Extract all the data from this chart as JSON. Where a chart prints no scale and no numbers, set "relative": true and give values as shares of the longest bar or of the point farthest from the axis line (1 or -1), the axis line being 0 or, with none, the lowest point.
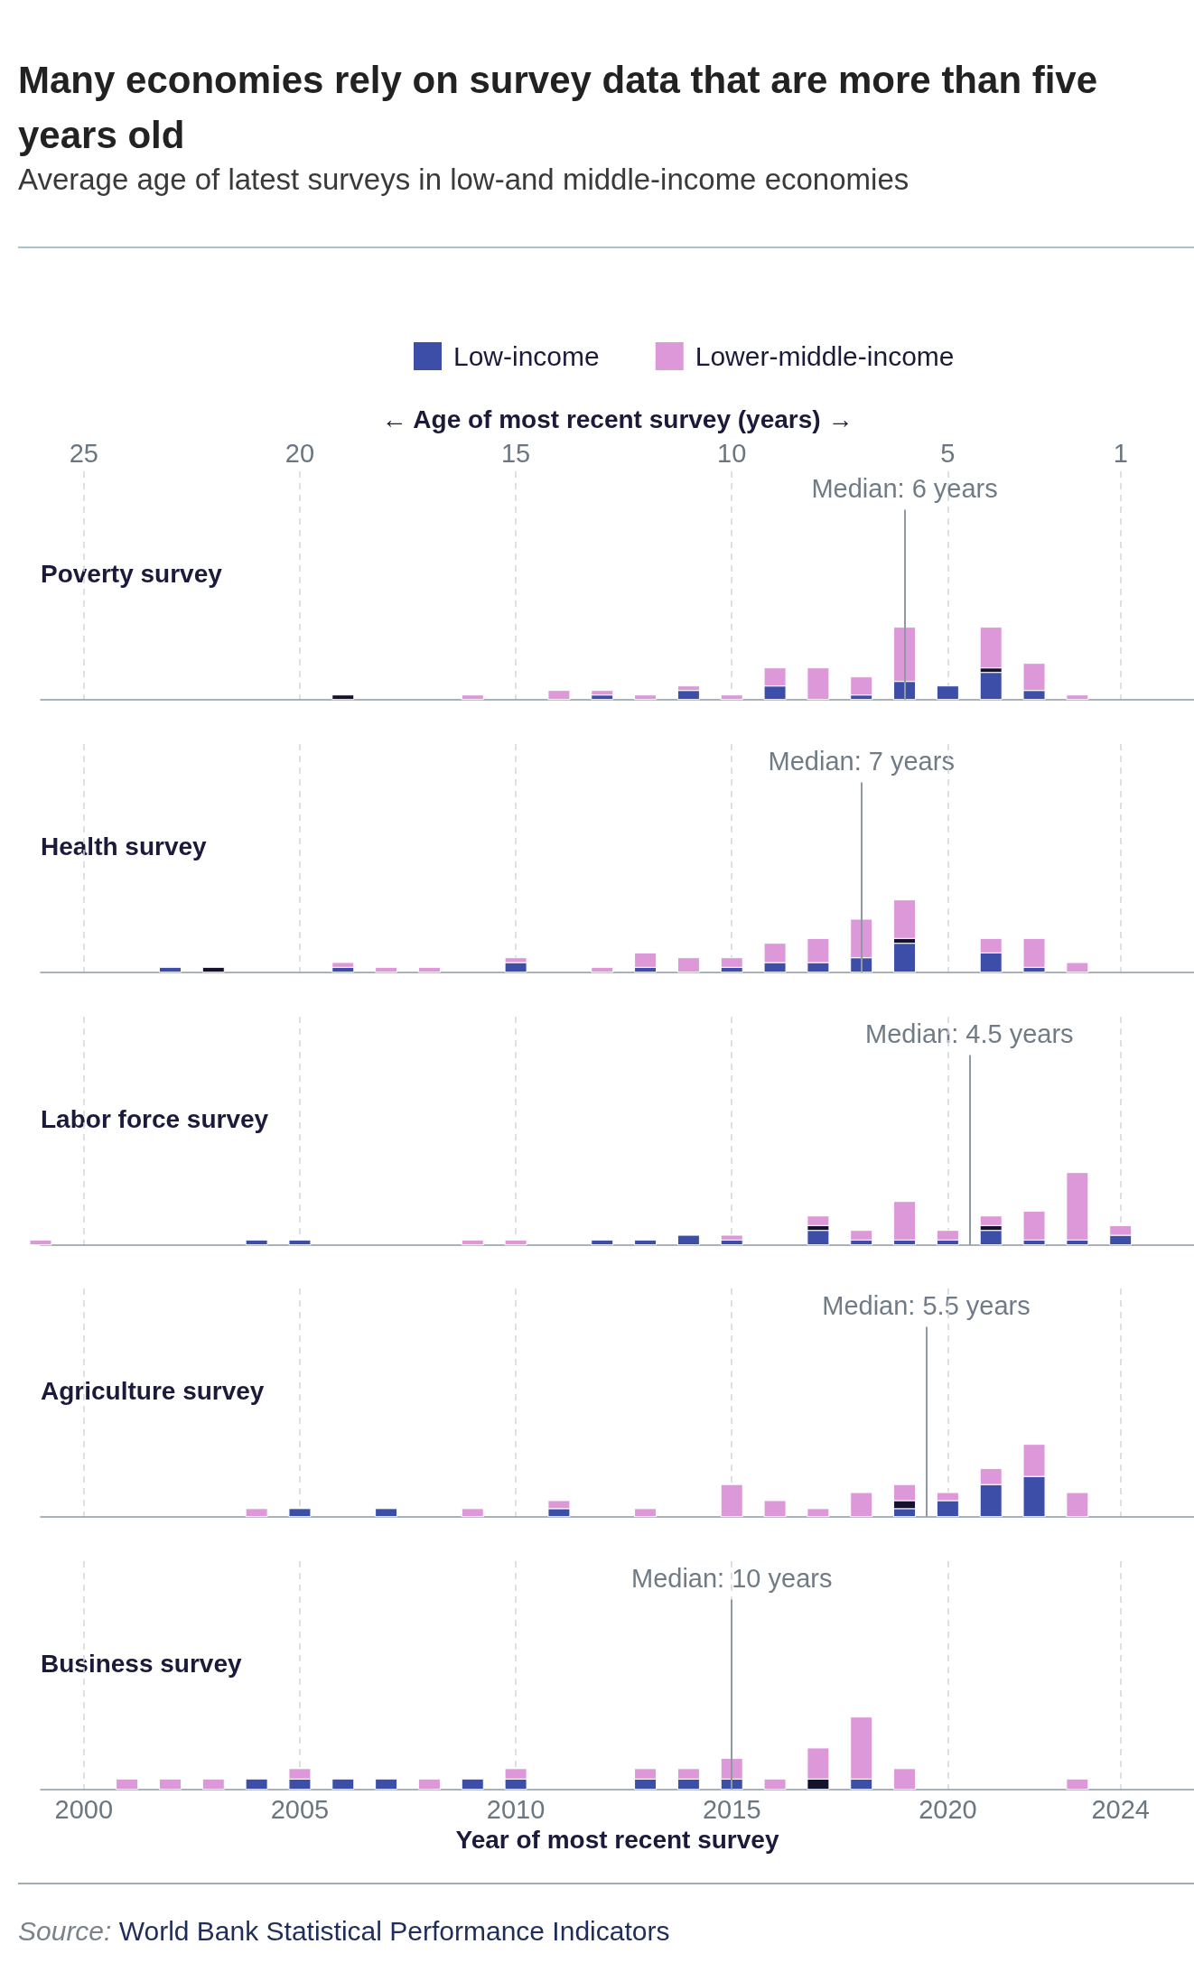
{
  "chart_data": [
    {
      "type": "bar",
      "title": "Many economies rely on survey data that are more than five years old",
      "subtitle": "Average age of latest surveys in low-and middle-income economies",
      "ylabel": "Poverty survey",
      "stacked": true,
      "relative": true,
      "legend": "top",
      "grid": "x",
      "x": [
        2006,
        2009,
        2011,
        2012,
        2013,
        2014,
        2015,
        2016,
        2017,
        2018,
        2019,
        2020,
        2021,
        2022,
        2023
      ],
      "series": [
        {
          "name": "Low-income",
          "color": "#3d4ea8",
          "values": [
            null,
            null,
            null,
            0.0625,
            null,
            0.125,
            null,
            0.1875,
            null,
            0.0625,
            0.25,
            0.1875,
            0.375,
            0.125,
            null
          ]
        },
        {
          "color": "#14122d",
          "values": [
            0.0625,
            null,
            null,
            null,
            null,
            null,
            null,
            null,
            null,
            null,
            null,
            null,
            0.0625,
            null,
            null
          ]
        },
        {
          "name": "Lower-middle-income",
          "color": "#dc98d9",
          "values": [
            null,
            0.0625,
            0.125,
            0.0625,
            0.0625,
            0.0625,
            0.0625,
            0.25,
            0.4375,
            0.25,
            0.75,
            null,
            0.5625,
            0.375,
            0.0625
          ]
        }
      ],
      "xlim": [
        1999,
        2025.7
      ],
      "x2lim": [
        26,
        -0.7
      ],
      "x2ticks": [
        25,
        20,
        15,
        10,
        5,
        1
      ],
      "x2label": "← Age of most recent survey (years) →",
      "ref_lines": [
        {
          "axis": "x2",
          "value": 6,
          "label": "Median: 6 years",
          "color": "#8e99a3"
        }
      ]
    },
    {
      "type": "bar",
      "ylabel": "Health survey",
      "stacked": true,
      "relative": true,
      "grid": "x",
      "tick_labels": false,
      "x": [
        2002,
        2003,
        2006,
        2007,
        2008,
        2010,
        2012,
        2013,
        2014,
        2015,
        2016,
        2017,
        2018,
        2019,
        2021,
        2022,
        2023
      ],
      "series": [
        {
          "color": "#3d4ea8",
          "values": [
            0.067,
            null,
            0.067,
            null,
            null,
            0.133,
            null,
            0.067,
            null,
            0.067,
            0.133,
            0.133,
            0.2,
            0.4,
            0.267,
            0.067,
            null
          ]
        },
        {
          "color": "#14122d",
          "values": [
            null,
            0.067,
            null,
            null,
            null,
            null,
            null,
            null,
            null,
            null,
            null,
            null,
            null,
            0.067,
            null,
            null,
            null
          ]
        },
        {
          "color": "#dc98d9",
          "values": [
            null,
            null,
            0.067,
            0.067,
            0.067,
            0.067,
            0.067,
            0.2,
            0.2,
            0.133,
            0.267,
            0.333,
            0.533,
            0.533,
            0.2,
            0.4,
            0.133
          ]
        }
      ],
      "xlim": [
        1999,
        2025.7
      ],
      "xticks": [
        2000,
        2005,
        2010,
        2015,
        2020,
        2024
      ],
      "ref_lines": [
        {
          "axis": "x",
          "value": 2018,
          "color": "#8e99a3"
        }
      ],
      "annotations": [
        "Median: 7 years"
      ]
    },
    {
      "type": "bar",
      "ylabel": "Labor force survey",
      "stacked": true,
      "relative": true,
      "grid": "x",
      "tick_labels": false,
      "x": [
        1999,
        2004,
        2005,
        2009,
        2010,
        2012,
        2013,
        2014,
        2015,
        2017,
        2018,
        2019,
        2020,
        2021,
        2022,
        2023,
        2024
      ],
      "series": [
        {
          "color": "#3d4ea8",
          "values": [
            null,
            0.067,
            0.067,
            null,
            null,
            0.067,
            0.067,
            0.133,
            0.067,
            0.2,
            0.067,
            0.067,
            0.067,
            0.2,
            0.067,
            0.067,
            0.133
          ]
        },
        {
          "color": "#14122d",
          "values": [
            null,
            null,
            null,
            null,
            null,
            null,
            null,
            null,
            null,
            0.067,
            null,
            null,
            null,
            0.067,
            null,
            null,
            null
          ]
        },
        {
          "color": "#dc98d9",
          "values": [
            0.067,
            null,
            null,
            0.067,
            0.067,
            null,
            null,
            null,
            0.067,
            0.133,
            0.133,
            0.533,
            0.133,
            0.133,
            0.4,
            0.933,
            0.133
          ]
        }
      ],
      "xlim": [
        1999,
        2025.7
      ],
      "xticks": [
        2000,
        2005,
        2010,
        2015,
        2020,
        2024
      ],
      "ref_lines": [
        {
          "axis": "x",
          "value": 2020.5,
          "color": "#8e99a3"
        }
      ],
      "annotations": [
        "Median: 4.5 years"
      ]
    },
    {
      "type": "bar",
      "ylabel": "Agriculture survey",
      "stacked": true,
      "relative": true,
      "grid": "x",
      "tick_labels": false,
      "x": [
        2004,
        2005,
        2007,
        2009,
        2011,
        2013,
        2015,
        2016,
        2017,
        2018,
        2019,
        2020,
        2021,
        2022,
        2023
      ],
      "series": [
        {
          "color": "#3d4ea8",
          "values": [
            null,
            0.111,
            0.111,
            null,
            0.111,
            null,
            null,
            null,
            null,
            null,
            0.111,
            0.222,
            0.444,
            0.556,
            null
          ]
        },
        {
          "color": "#14122d",
          "values": [
            null,
            null,
            null,
            null,
            null,
            null,
            null,
            null,
            null,
            null,
            0.111,
            null,
            null,
            null,
            null
          ]
        },
        {
          "color": "#dc98d9",
          "values": [
            0.111,
            null,
            null,
            0.111,
            0.111,
            0.111,
            0.444,
            0.222,
            0.111,
            0.333,
            0.222,
            0.111,
            0.222,
            0.444,
            0.333
          ]
        }
      ],
      "xlim": [
        1999,
        2025.7
      ],
      "xticks": [
        2000,
        2005,
        2010,
        2015,
        2020,
        2024
      ],
      "ref_lines": [
        {
          "axis": "x",
          "value": 2019.5,
          "color": "#8e99a3"
        }
      ],
      "annotations": [
        "Median: 5.5 years"
      ]
    },
    {
      "type": "bar",
      "ylabel": "Business survey",
      "xlabel": "Year of most recent survey",
      "stacked": true,
      "relative": true,
      "grid": "x",
      "tick_labels": "x",
      "x": [
        2001,
        2002,
        2003,
        2004,
        2005,
        2006,
        2007,
        2008,
        2009,
        2010,
        2013,
        2014,
        2015,
        2016,
        2017,
        2018,
        2019,
        2023
      ],
      "series": [
        {
          "color": "#3d4ea8",
          "values": [
            null,
            null,
            null,
            0.143,
            0.143,
            0.143,
            0.143,
            null,
            0.143,
            0.143,
            0.143,
            0.143,
            0.143,
            null,
            null,
            0.143,
            null,
            null
          ]
        },
        {
          "color": "#14122d",
          "values": [
            null,
            null,
            null,
            null,
            null,
            null,
            null,
            null,
            null,
            null,
            null,
            null,
            null,
            null,
            0.143,
            null,
            null,
            null
          ]
        },
        {
          "color": "#dc98d9",
          "values": [
            0.143,
            0.143,
            0.143,
            null,
            0.143,
            null,
            null,
            0.143,
            null,
            0.143,
            0.143,
            0.143,
            0.286,
            0.143,
            0.429,
            0.857,
            0.286,
            0.143
          ]
        }
      ],
      "xlim": [
        1999,
        2025.7
      ],
      "xticks": [
        2000,
        2005,
        2010,
        2015,
        2020,
        2024
      ],
      "ref_lines": [
        {
          "axis": "x",
          "value": 2015,
          "color": "#8e99a3"
        }
      ],
      "annotations": [
        "Median: 10 years",
        "Source: World Bank Statistical Performance Indicators"
      ]
    }
  ]
}
